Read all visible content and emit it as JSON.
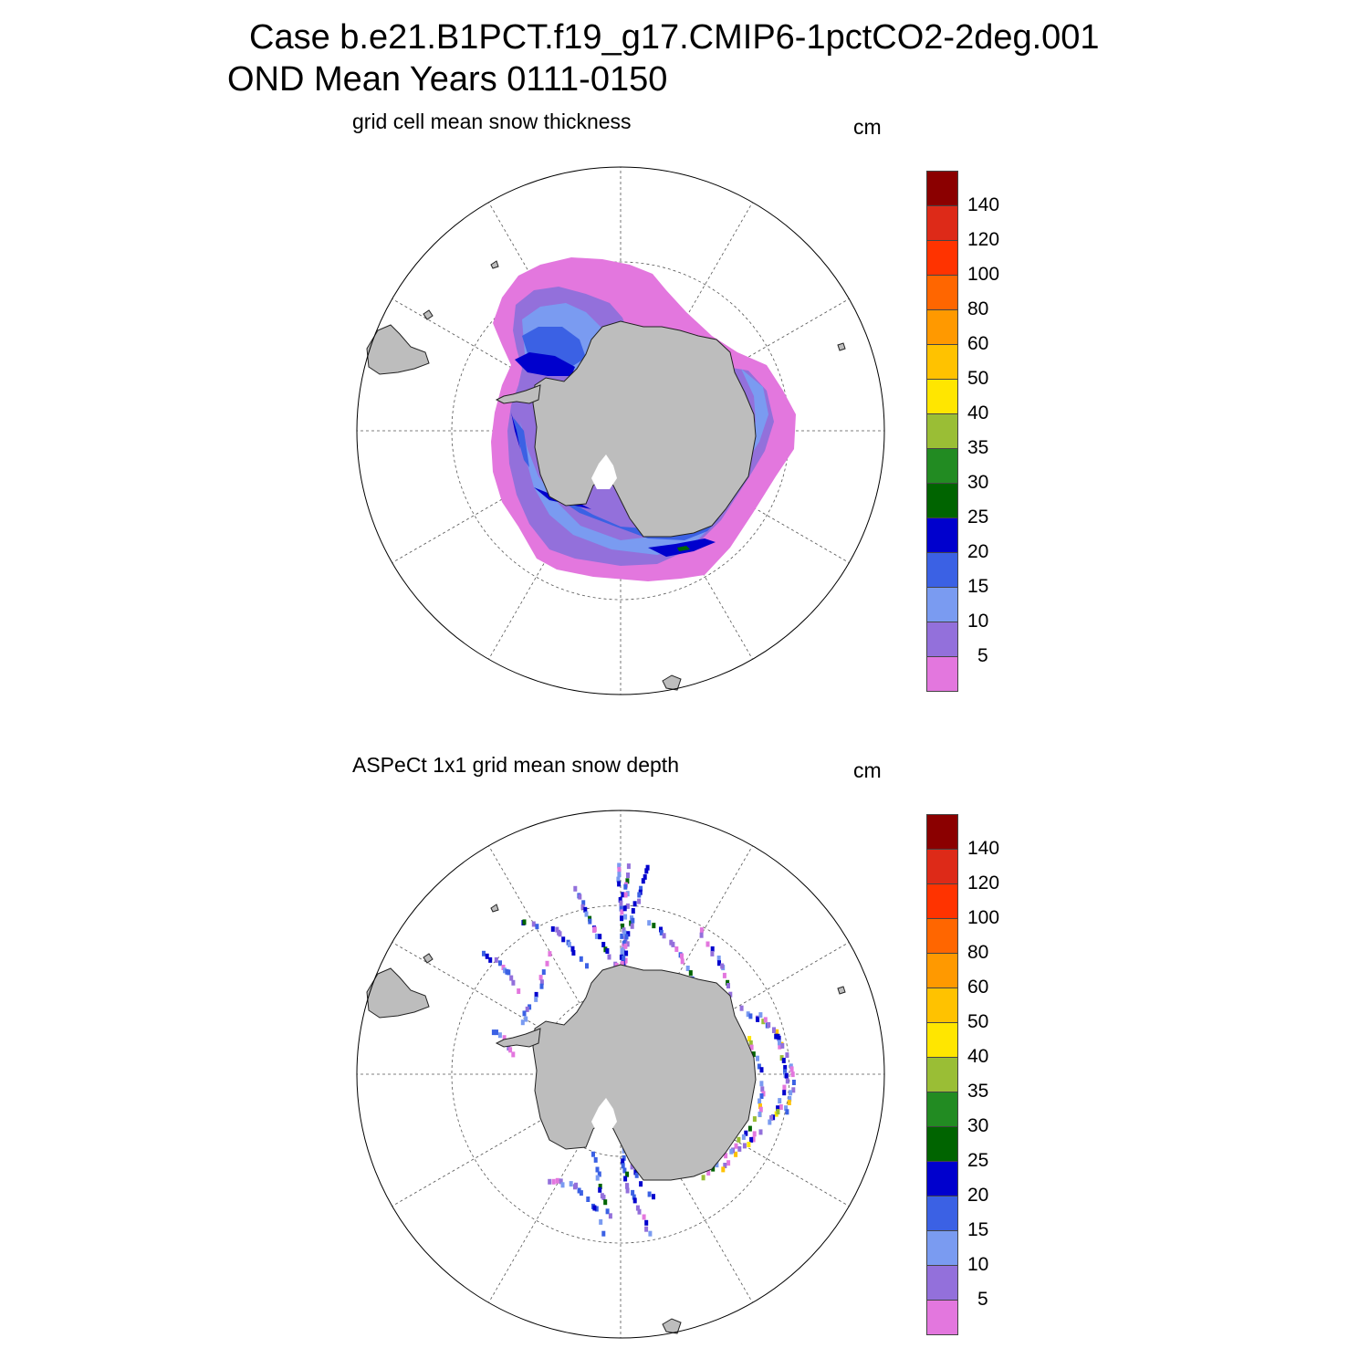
{
  "figure": {
    "case_title": "Case b.e21.B1PCT.f19_g17.CMIP6-1pctCO2-2deg.001",
    "period_title": "OND Mean   Years 0111-0150"
  },
  "panels": [
    {
      "title": "grid cell mean snow thickness",
      "units": "cm",
      "map_type": "south-polar-stereographic",
      "content": "model-field"
    },
    {
      "title": "ASPeCt 1x1 grid mean snow depth",
      "units": "cm",
      "map_type": "south-polar-stereographic",
      "content": "ship-observations"
    }
  ],
  "colorbar": {
    "levels": [
      "5",
      "10",
      "15",
      "20",
      "25",
      "30",
      "35",
      "40",
      "50",
      "60",
      "80",
      "100",
      "120",
      "140"
    ],
    "colors": [
      "#e377de",
      "#9370db",
      "#7a9bf1",
      "#3b61e4",
      "#0000cd",
      "#006400",
      "#228b22",
      "#9abe35",
      "#ffe600",
      "#ffc200",
      "#ff9900",
      "#ff6600",
      "#ff3300",
      "#dd2a18",
      "#8b0000"
    ]
  },
  "land_color": "#bdbdbd"
}
